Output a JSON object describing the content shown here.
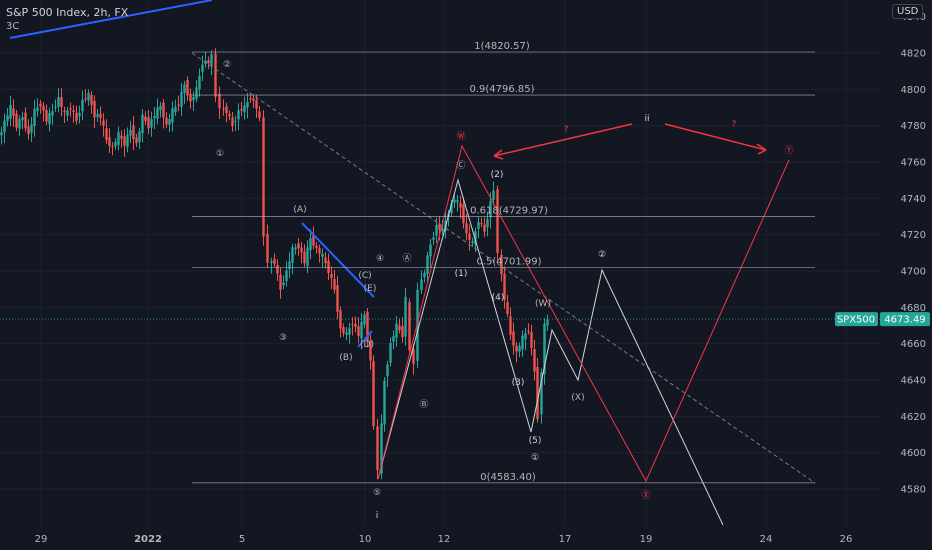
{
  "header": {
    "title": "S&P 500 Index, 2h, FX",
    "sub": "3C",
    "currency_button": "USD"
  },
  "colors": {
    "up": "#26a69a",
    "down": "#ef5350",
    "red_path": "#f23645",
    "white_path": "#d1d4dc",
    "blue_line": "#2962ff",
    "label_price_bg": "#26a69a"
  },
  "chart_data": {
    "type": "candlestick",
    "symbol": "SPX500",
    "last_price": 4673.49,
    "ylim": [
      4567,
      4832
    ],
    "y_ticks": [
      4820,
      4800,
      4780,
      4760,
      4740,
      4720,
      4700,
      4680,
      4660,
      4640,
      4620,
      4600,
      4580
    ],
    "x_ticks": [
      "29",
      "2022",
      "5",
      "10",
      "12",
      "17",
      "19",
      "24",
      "26"
    ],
    "fib_levels": [
      {
        "label": "1(4820.57)",
        "value": 4820.57
      },
      {
        "label": "0.9(4796.85)",
        "value": 4796.85
      },
      {
        "label": "0.618(4729.97)",
        "value": 4729.97
      },
      {
        "label": "0.5(4701.99)",
        "value": 4701.99
      },
      {
        "label": "0(4583.40)",
        "value": 4583.4
      }
    ],
    "wave_labels": [
      "②",
      "①",
      "(A)",
      "③",
      "(B)",
      "(C)",
      "④",
      "(D)",
      "(E)",
      "Ⓐ",
      "Ⓑ",
      "⑤",
      "i",
      "Ⓦ",
      "Ⓒ",
      "(2)",
      "(1)",
      "(4)",
      "(3)",
      "(5)",
      "(W)",
      "①",
      "②",
      "(X)",
      "Ⓧ",
      "Ⓨ",
      "ii",
      "?",
      "?"
    ],
    "ohlc_close_path": [
      [
        0,
        4773
      ],
      [
        6,
        4782
      ],
      [
        12,
        4790
      ],
      [
        18,
        4780
      ],
      [
        24,
        4785
      ],
      [
        30,
        4775
      ],
      [
        36,
        4788
      ],
      [
        42,
        4792
      ],
      [
        48,
        4783
      ],
      [
        54,
        4788
      ],
      [
        60,
        4795
      ],
      [
        66,
        4786
      ],
      [
        72,
        4790
      ],
      [
        78,
        4783
      ],
      [
        84,
        4794
      ],
      [
        90,
        4797
      ],
      [
        96,
        4786
      ],
      [
        102,
        4785
      ],
      [
        108,
        4772
      ],
      [
        114,
        4768
      ],
      [
        120,
        4775
      ],
      [
        126,
        4770
      ],
      [
        132,
        4778
      ],
      [
        138,
        4770
      ],
      [
        144,
        4785
      ],
      [
        150,
        4780
      ],
      [
        156,
        4786
      ],
      [
        162,
        4791
      ],
      [
        168,
        4780
      ],
      [
        174,
        4788
      ],
      [
        180,
        4792
      ],
      [
        186,
        4803
      ],
      [
        192,
        4793
      ],
      [
        198,
        4800
      ],
      [
        204,
        4815
      ],
      [
        210,
        4815
      ],
      [
        214,
        4818
      ],
      [
        218,
        4797
      ],
      [
        222,
        4790
      ],
      [
        228,
        4788
      ],
      [
        234,
        4780
      ],
      [
        240,
        4788
      ],
      [
        246,
        4790
      ],
      [
        252,
        4796
      ],
      [
        258,
        4790
      ],
      [
        262,
        4783
      ],
      [
        266,
        4720
      ],
      [
        270,
        4705
      ],
      [
        276,
        4705
      ],
      [
        282,
        4690
      ],
      [
        288,
        4700
      ],
      [
        294,
        4712
      ],
      [
        300,
        4714
      ],
      [
        306,
        4705
      ],
      [
        312,
        4718
      ],
      [
        318,
        4712
      ],
      [
        324,
        4708
      ],
      [
        330,
        4700
      ],
      [
        336,
        4690
      ],
      [
        342,
        4668
      ],
      [
        348,
        4665
      ],
      [
        354,
        4672
      ],
      [
        360,
        4665
      ],
      [
        366,
        4676
      ],
      [
        372,
        4650
      ],
      [
        376,
        4615
      ],
      [
        380,
        4590
      ],
      [
        386,
        4640
      ],
      [
        392,
        4660
      ],
      [
        398,
        4670
      ],
      [
        404,
        4665
      ],
      [
        408,
        4685
      ],
      [
        412,
        4655
      ],
      [
        416,
        4650
      ],
      [
        420,
        4690
      ],
      [
        426,
        4700
      ],
      [
        432,
        4715
      ],
      [
        438,
        4725
      ],
      [
        444,
        4722
      ],
      [
        450,
        4733
      ],
      [
        456,
        4740
      ],
      [
        462,
        4735
      ],
      [
        468,
        4720
      ],
      [
        474,
        4715
      ],
      [
        480,
        4728
      ],
      [
        486,
        4722
      ],
      [
        492,
        4738
      ],
      [
        496,
        4745
      ],
      [
        500,
        4710
      ],
      [
        506,
        4685
      ],
      [
        512,
        4665
      ],
      [
        518,
        4655
      ],
      [
        524,
        4663
      ],
      [
        530,
        4668
      ],
      [
        536,
        4645
      ],
      [
        540,
        4620
      ],
      [
        546,
        4670
      ],
      [
        550,
        4673
      ]
    ]
  }
}
